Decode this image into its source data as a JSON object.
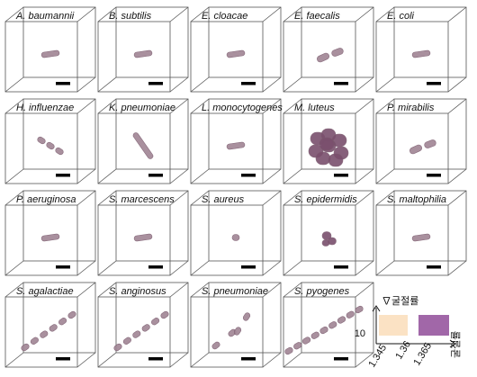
{
  "panels": [
    {
      "label": "A. baumannii",
      "cells": "single"
    },
    {
      "label": "B. subtilis",
      "cells": "single"
    },
    {
      "label": "E. cloacae",
      "cells": "single"
    },
    {
      "label": "E. faecalis",
      "cells": "pair"
    },
    {
      "label": "E. coli",
      "cells": "single"
    },
    {
      "label": "H. influenzae",
      "cells": "short-chain"
    },
    {
      "label": "K. pneumoniae",
      "cells": "diagonal"
    },
    {
      "label": "L. monocytogenes",
      "cells": "single"
    },
    {
      "label": "M. luteus",
      "cells": "cluster"
    },
    {
      "label": "P. mirabilis",
      "cells": "pair"
    },
    {
      "label": "P. aeruginosa",
      "cells": "single"
    },
    {
      "label": "S. marcescens",
      "cells": "single"
    },
    {
      "label": "S. aureus",
      "cells": "coccus"
    },
    {
      "label": "S. epidermidis",
      "cells": "cluster-small"
    },
    {
      "label": "S. maltophilia",
      "cells": "single"
    },
    {
      "label": "S. agalactiae",
      "cells": "chain"
    },
    {
      "label": "S. anginosus",
      "cells": "chain"
    },
    {
      "label": "S. pneumoniae",
      "cells": "curve-chain"
    },
    {
      "label": "S. pyogenes",
      "cells": "long-chain"
    }
  ],
  "colorbar": {
    "y_axis_label": "∇굴절률",
    "x_axis_label": "굴절률",
    "y_tick": "10",
    "x_ticks": [
      "1.345",
      "1.36",
      "1.365"
    ],
    "color_low": "#fbe2c4",
    "color_high": "#a167a8"
  },
  "colors": {
    "cell_fill": "#a08594",
    "cell_stroke": "#7a5a6d",
    "cluster_fill": "#7a4f6d",
    "box_stroke": "#555555",
    "scale_bar": "#000000"
  }
}
